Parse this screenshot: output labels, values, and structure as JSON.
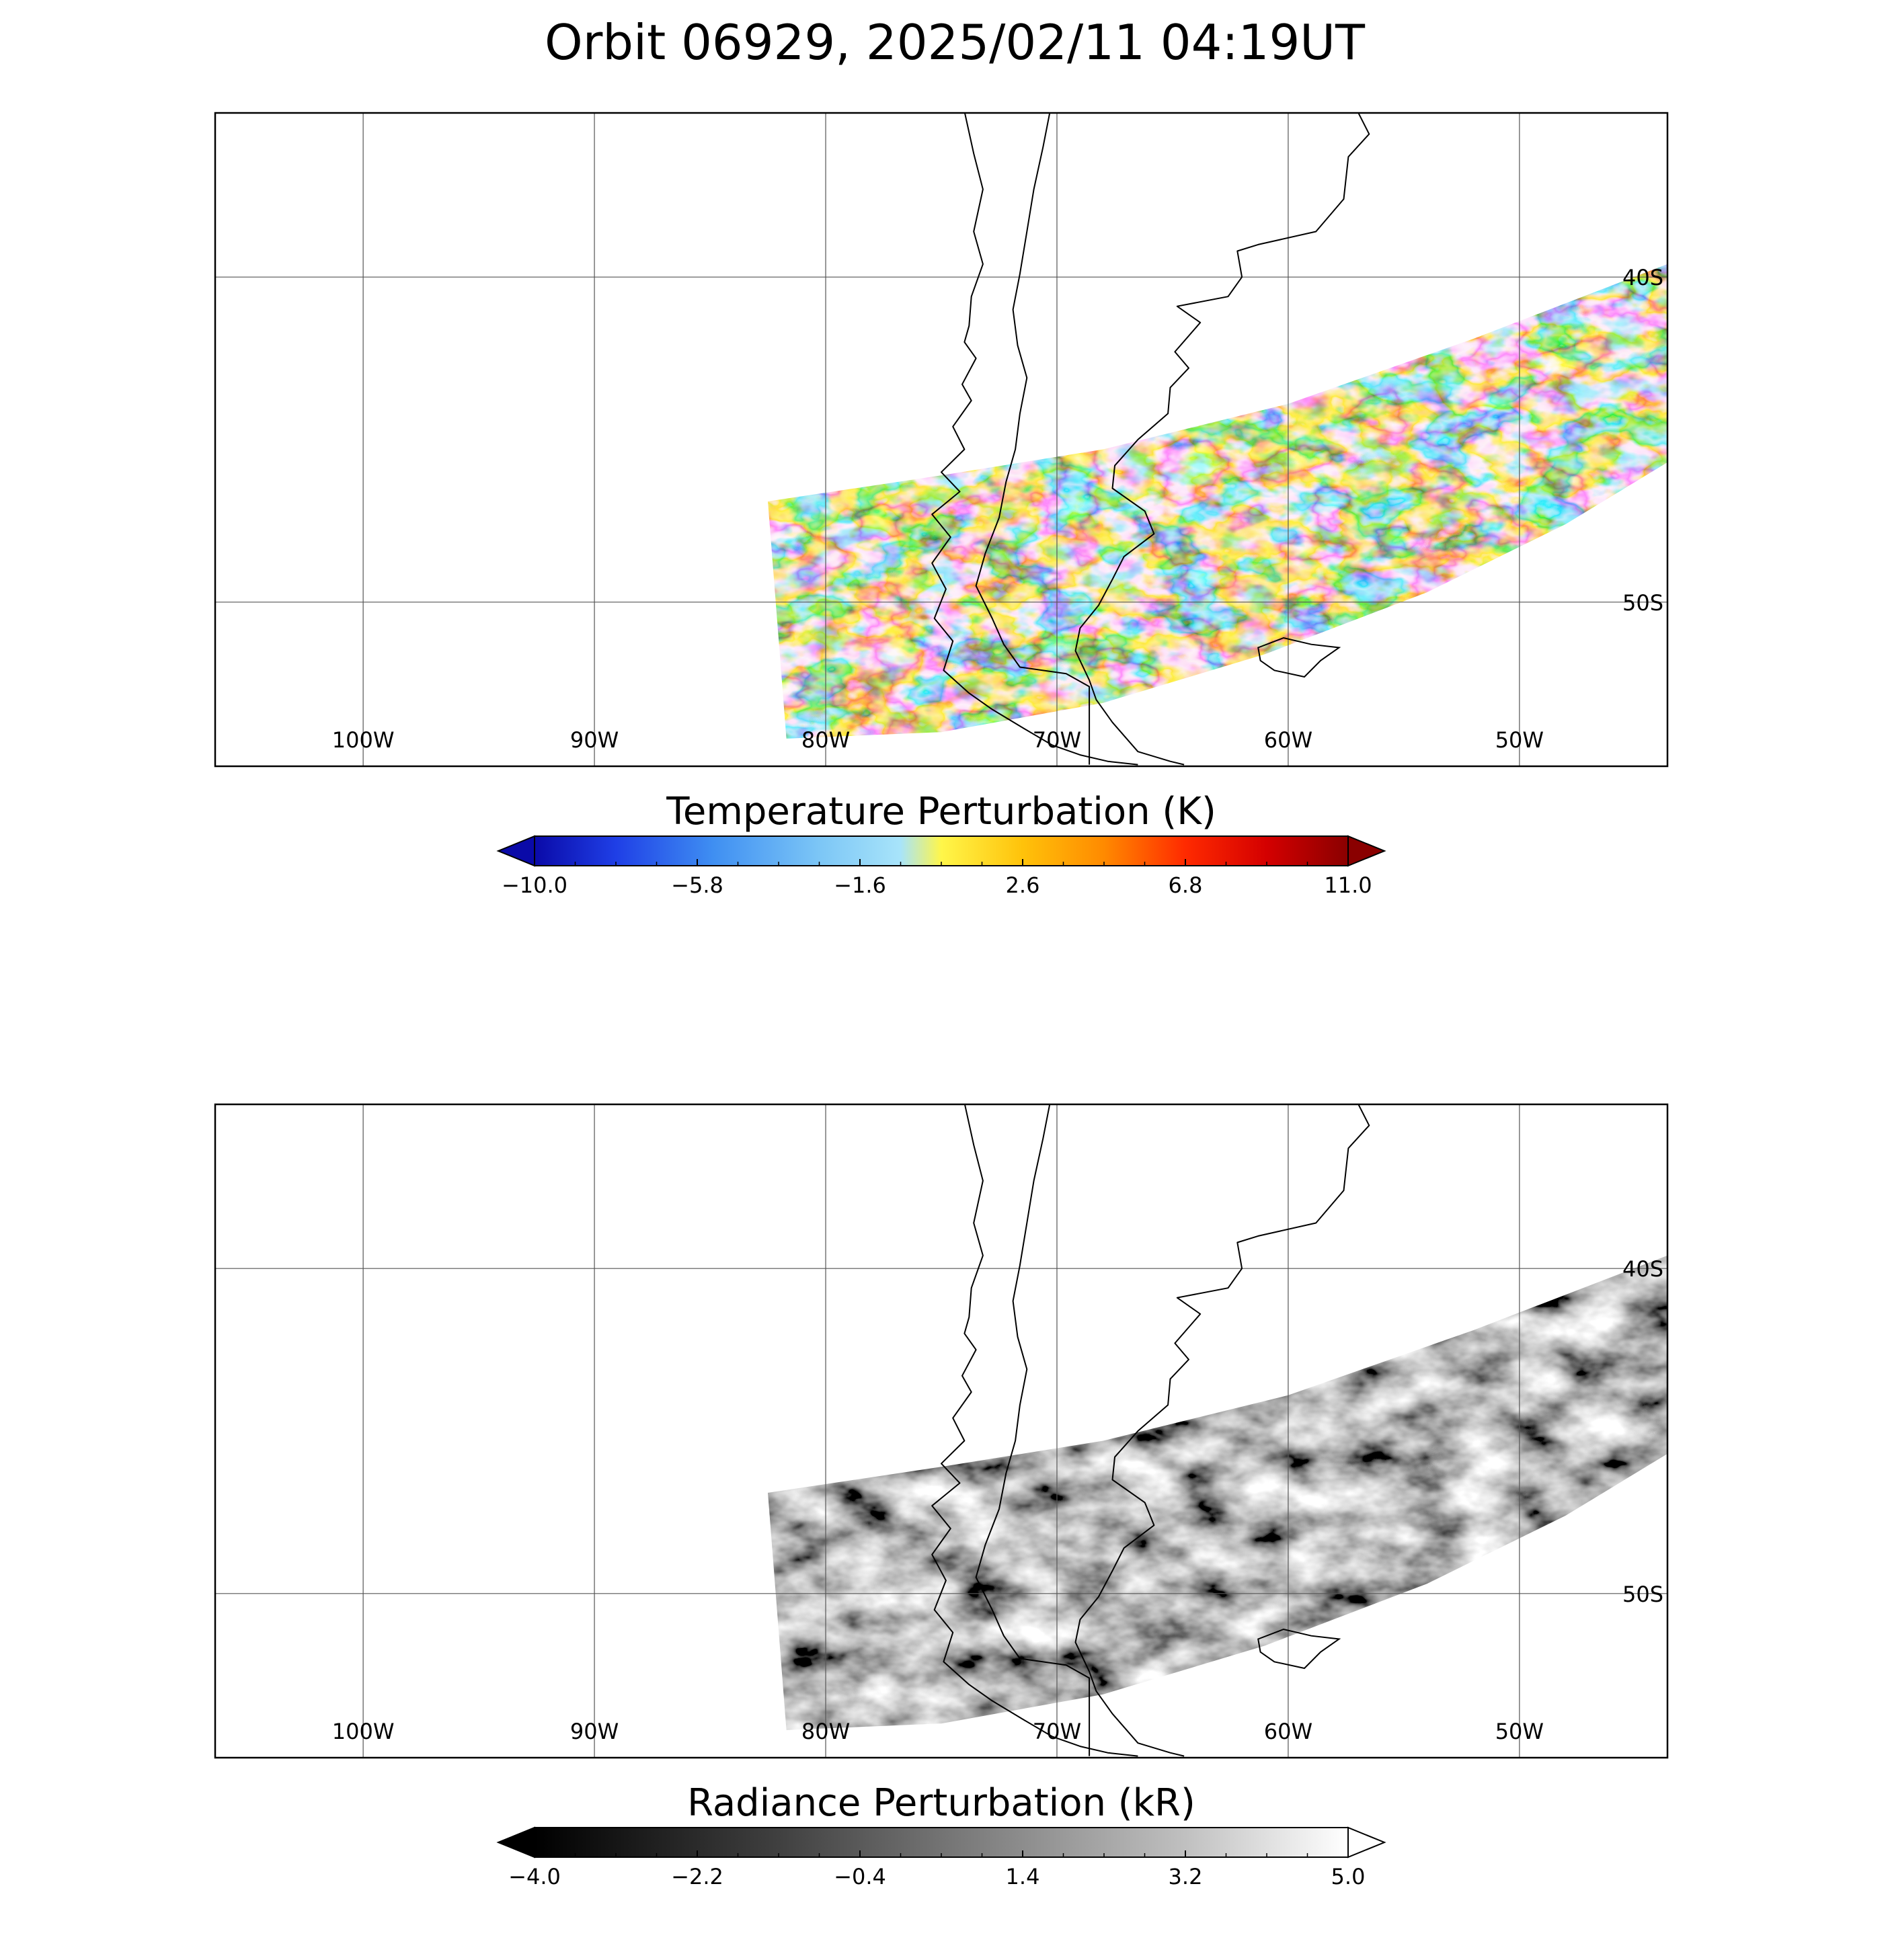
{
  "title": "Orbit 06929, 2025/02/11 04:19UT",
  "map": {
    "lon_range": [
      -106.4,
      -43.6
    ],
    "lat_range": [
      -34.95,
      -55.05
    ],
    "lon_labels": [
      {
        "lon": -100,
        "text": "100W"
      },
      {
        "lon": -90,
        "text": "90W"
      },
      {
        "lon": -80,
        "text": "80W"
      },
      {
        "lon": -70,
        "text": "70W"
      },
      {
        "lon": -60,
        "text": "60W"
      },
      {
        "lon": -50,
        "text": "50W"
      }
    ],
    "lat_labels": [
      {
        "lat": -40,
        "text": "40S"
      },
      {
        "lat": -50,
        "text": "50S"
      }
    ],
    "gridlines": true,
    "swath_edges": {
      "north": [
        [
          -82.5,
          -46.9
        ],
        [
          -75,
          -46.1
        ],
        [
          -68,
          -45.3
        ],
        [
          -60,
          -43.9
        ],
        [
          -52,
          -41.9
        ],
        [
          -43.6,
          -39.6
        ]
      ],
      "south": [
        [
          -81.7,
          -54.2
        ],
        [
          -75,
          -54.0
        ],
        [
          -68,
          -53.1
        ],
        [
          -61,
          -51.6
        ],
        [
          -54,
          -49.7
        ],
        [
          -48,
          -47.6
        ],
        [
          -43.6,
          -45.7
        ]
      ]
    }
  },
  "panels": [
    {
      "id": "temperature",
      "colorbar_title": "Temperature Perturbation (K)",
      "vmin": -10.0,
      "vmax": 11.0,
      "ticks": [
        "−10.0",
        "−5.8",
        "−1.6",
        "2.6",
        "6.8",
        "11.0"
      ],
      "colormap": [
        "#0a0aa8",
        "#1f3fe6",
        "#3f8ff2",
        "#7cc6f6",
        "#a8e4fa",
        "#fff64a",
        "#ffc20a",
        "#ff8a00",
        "#ff2a00",
        "#d40000",
        "#8a0000"
      ],
      "extend_min_color": "#0a0aa8",
      "extend_max_color": "#8a0000"
    },
    {
      "id": "radiance",
      "colorbar_title": "Radiance Perturbation (kR)",
      "vmin": -4.0,
      "vmax": 5.0,
      "ticks": [
        "−4.0",
        "−2.2",
        "−0.4",
        "1.4",
        "3.2",
        "5.0"
      ],
      "colormap": [
        "#000000",
        "#404040",
        "#808080",
        "#b8b8b8",
        "#ffffff"
      ],
      "extend_min_color": "#000000",
      "extend_max_color": "#ffffff"
    }
  ]
}
